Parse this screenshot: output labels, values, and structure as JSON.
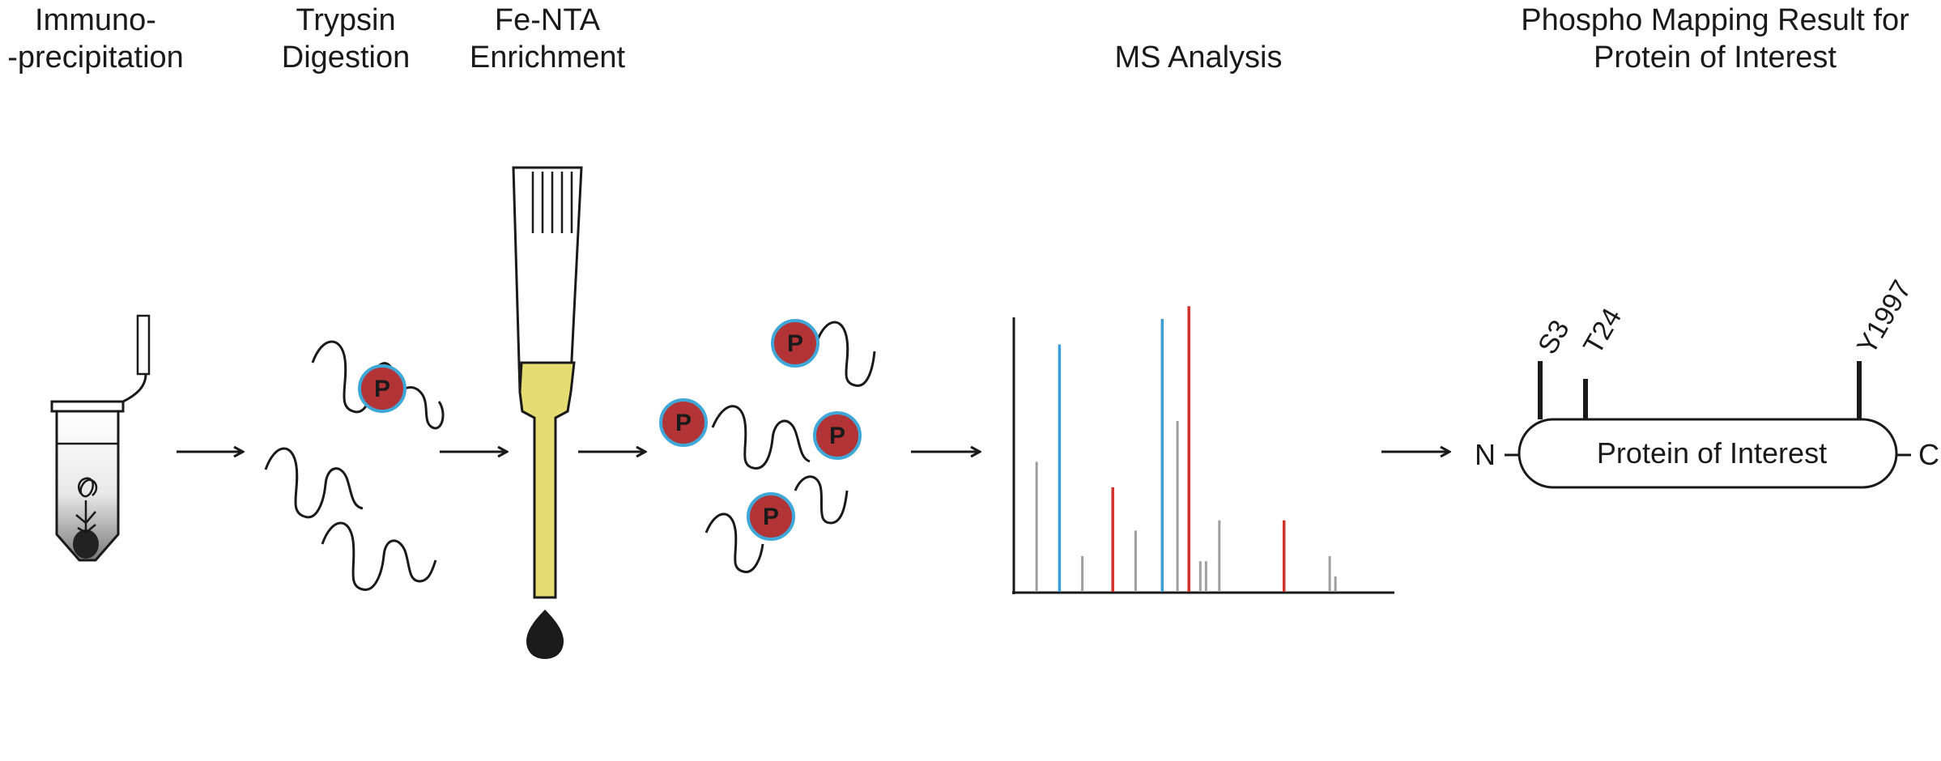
{
  "steps": {
    "immunoprecipitation": {
      "line1": "Immuno-",
      "line2": "-precipitation"
    },
    "trypsin": {
      "line1": "Trypsin",
      "line2": "Digestion"
    },
    "fenta": {
      "line1": "Fe-NTA",
      "line2": "Enrichment"
    },
    "ms": {
      "line1": "MS Analysis"
    },
    "result": {
      "line1": "Phospho Mapping Result for",
      "line2": "Protein of Interest"
    }
  },
  "phospho_label": "P",
  "protein": {
    "name": "Protein of Interest",
    "n_terminus": "N",
    "c_terminus": "C",
    "sites": [
      "S3",
      "T24",
      "Y1997"
    ]
  },
  "spectrum": {
    "peaks": [
      {
        "position": 0.06,
        "intensity": 0.51,
        "kind": "other"
      },
      {
        "position": 0.12,
        "intensity": 0.97,
        "kind": "blue"
      },
      {
        "position": 0.18,
        "intensity": 0.14,
        "kind": "other"
      },
      {
        "position": 0.26,
        "intensity": 0.41,
        "kind": "red"
      },
      {
        "position": 0.32,
        "intensity": 0.24,
        "kind": "other"
      },
      {
        "position": 0.39,
        "intensity": 1.07,
        "kind": "blue"
      },
      {
        "position": 0.43,
        "intensity": 0.67,
        "kind": "other"
      },
      {
        "position": 0.46,
        "intensity": 1.12,
        "kind": "red"
      },
      {
        "position": 0.49,
        "intensity": 0.12,
        "kind": "other"
      },
      {
        "position": 0.505,
        "intensity": 0.12,
        "kind": "other"
      },
      {
        "position": 0.54,
        "intensity": 0.28,
        "kind": "other"
      },
      {
        "position": 0.71,
        "intensity": 0.28,
        "kind": "red"
      },
      {
        "position": 0.83,
        "intensity": 0.14,
        "kind": "other"
      },
      {
        "position": 0.845,
        "intensity": 0.06,
        "kind": "other"
      }
    ]
  },
  "colors": {
    "phospho_fill": "#b23436",
    "phospho_ring": "#3fa8d8",
    "blue_peak": "#3d9ed7",
    "red_peak": "#d0332b",
    "gray_peak": "#9e9e9e",
    "resin": "#e6dd72",
    "ink": "#1a1a1a"
  }
}
